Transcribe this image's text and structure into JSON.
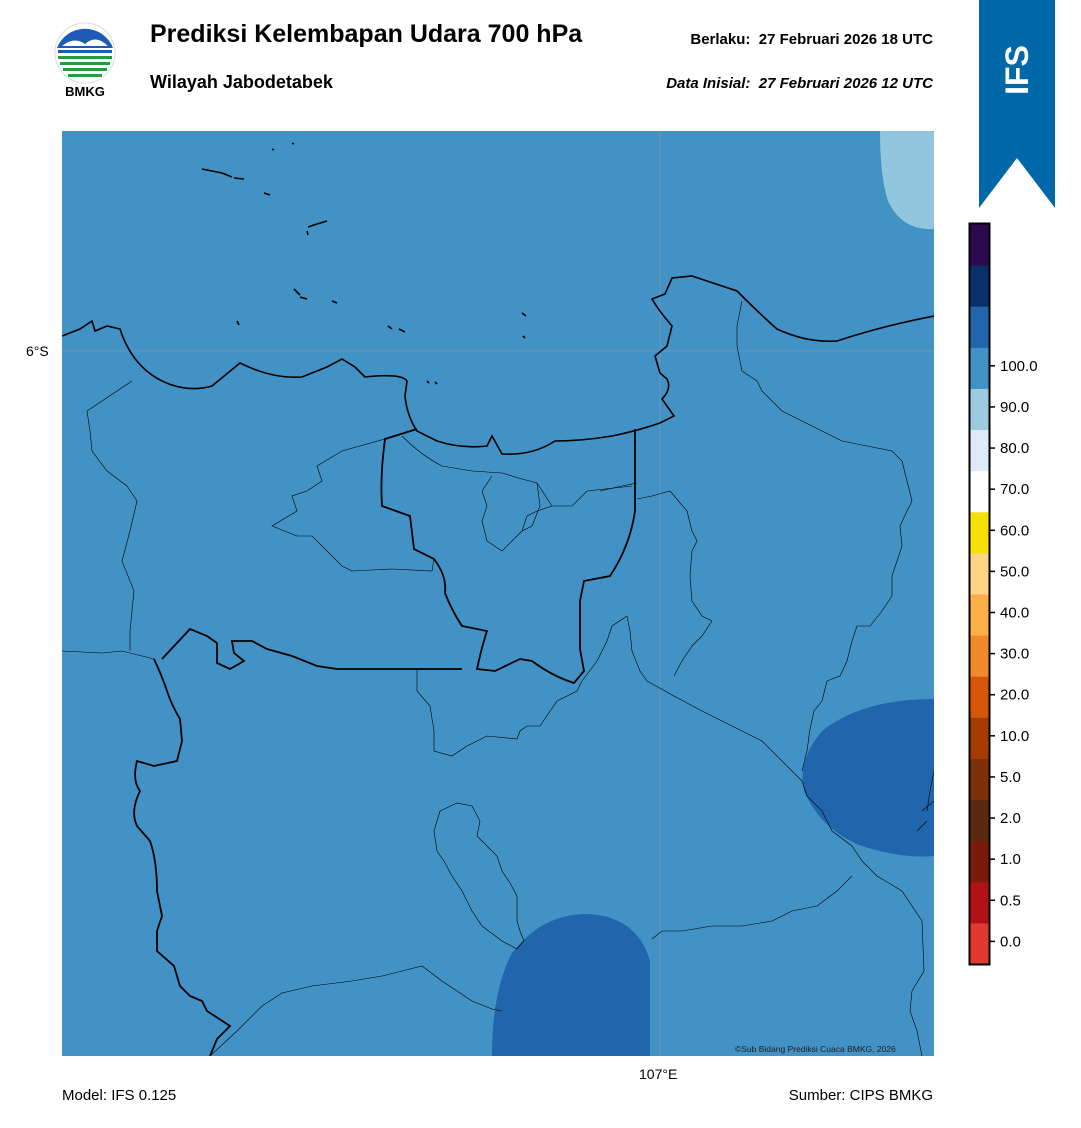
{
  "header": {
    "title": "Prediksi Kelembapan Udara 700 hPa",
    "region": "Wilayah Jabodetabek",
    "valid_label": "Berlaku:",
    "valid_time": "27 Februari 2026 18 UTC",
    "init_label": "Data Inisial:",
    "init_time": "27 Februari 2026 12 UTC"
  },
  "logo": {
    "text": "BMKG",
    "icon": "bmkg-logo-icon"
  },
  "ribbon": {
    "text": "IFS",
    "color": "#0068a9"
  },
  "map": {
    "lat_label": "6°S",
    "lon_label": "107°E",
    "credit": "©Sub Bidang Prediksi Cuaca BMKG, 2026",
    "base_color": "#4292c6",
    "humid_color": "#2166ac",
    "dry_color": "#92c5de"
  },
  "colorbar": {
    "labels": [
      "0.0",
      "0.5",
      "1.0",
      "2.0",
      "5.0",
      "10.0",
      "20.0",
      "30.0",
      "40.0",
      "50.0",
      "60.0",
      "70.0",
      "80.0",
      "90.0",
      "100.0"
    ],
    "colors": [
      "#e03a2f",
      "#b01218",
      "#7a1b0c",
      "#5c2a10",
      "#7d3008",
      "#a63c04",
      "#d55607",
      "#f08a2a",
      "#fdae49",
      "#fdd386",
      "#f5e00a",
      "#ffffff",
      "#deebf7",
      "#9ecae1",
      "#4292c6",
      "#2166ac",
      "#08306b",
      "#2d0a4e"
    ]
  },
  "footer": {
    "model": "Model: IFS 0.125",
    "source": "Sumber: CIPS BMKG"
  }
}
